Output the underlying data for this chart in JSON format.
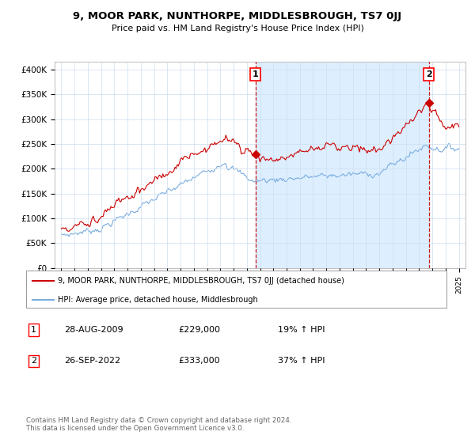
{
  "title": "9, MOOR PARK, NUNTHORPE, MIDDLESBROUGH, TS7 0JJ",
  "subtitle": "Price paid vs. HM Land Registry's House Price Index (HPI)",
  "ylabel_ticks": [
    "£0",
    "£50K",
    "£100K",
    "£150K",
    "£200K",
    "£250K",
    "£300K",
    "£350K",
    "£400K"
  ],
  "ytick_values": [
    0,
    50000,
    100000,
    150000,
    200000,
    250000,
    300000,
    350000,
    400000
  ],
  "ylim": [
    0,
    415000
  ],
  "xlim_start": 1994.5,
  "xlim_end": 2025.5,
  "sale1_date": 2009.65,
  "sale1_price": 229000,
  "sale1_label": "1",
  "sale2_date": 2022.73,
  "sale2_price": 333000,
  "sale2_label": "2",
  "color_property": "#cc0000",
  "color_hpi": "#7aade0",
  "color_vline": "#cc0000",
  "color_shading": "#ddeeff",
  "legend_line1": "9, MOOR PARK, NUNTHORPE, MIDDLESBROUGH, TS7 0JJ (detached house)",
  "legend_line2": "HPI: Average price, detached house, Middlesbrough",
  "table_row1": [
    "1",
    "28-AUG-2009",
    "£229,000",
    "19% ↑ HPI"
  ],
  "table_row2": [
    "2",
    "26-SEP-2022",
    "£333,000",
    "37% ↑ HPI"
  ],
  "footnote": "Contains HM Land Registry data © Crown copyright and database right 2024.\nThis data is licensed under the Open Government Licence v3.0.",
  "background_color": "#ffffff",
  "grid_color": "#ccddee"
}
